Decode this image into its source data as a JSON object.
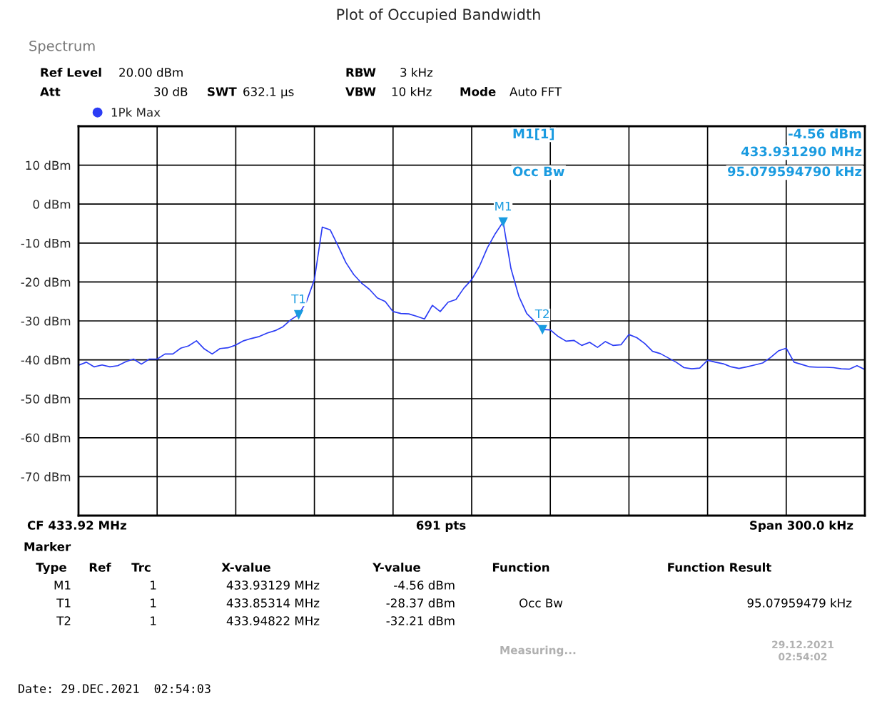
{
  "chart_data": {
    "type": "line",
    "title": "Plot of Occupied Bandwidth",
    "categories": [
      null,
      null,
      null,
      null,
      null,
      null,
      null,
      null,
      null,
      null,
      null,
      null,
      null,
      null,
      null,
      null,
      null,
      null,
      null,
      null,
      null,
      null,
      null,
      null,
      null,
      null,
      null,
      null,
      null,
      null,
      null,
      null,
      null,
      null,
      null,
      null,
      null,
      null,
      null,
      null,
      null,
      null,
      null,
      null,
      null,
      null,
      null,
      null,
      null,
      null,
      null,
      null,
      null,
      null,
      null,
      null,
      null,
      null,
      null,
      null,
      null,
      null,
      null,
      null,
      null,
      null,
      null,
      null,
      null,
      null,
      null,
      null,
      null,
      null,
      null,
      null,
      null,
      null,
      null,
      null,
      null,
      null,
      null,
      null,
      null,
      null,
      null,
      null,
      null,
      null,
      null,
      null,
      null,
      null,
      null,
      null,
      null,
      null,
      null,
      null,
      null
    ],
    "ylim": [
      -80,
      20
    ],
    "yticks": [
      {
        "value": -70,
        "label": "-70 dBm"
      },
      {
        "value": -60,
        "label": "-60 dBm"
      },
      {
        "value": -50,
        "label": "-50 dBm"
      },
      {
        "value": -40,
        "label": "-40 dBm"
      },
      {
        "value": -30,
        "label": "-30 dBm"
      },
      {
        "value": -20,
        "label": "-20 dBm"
      },
      {
        "value": -10,
        "label": "-10 dBm"
      },
      {
        "value": 0,
        "label": "0 dBm"
      },
      {
        "value": 10,
        "label": "10 dBm"
      }
    ],
    "tick_labels": "y",
    "grid": true,
    "legend": "top left",
    "series": [
      {
        "name": "1Pk Max",
        "color": "#2b3cf5",
        "marker": "none",
        "values": [
          -41.4,
          -40.6,
          -41.8,
          -41.3,
          -41.8,
          -41.5,
          -40.5,
          -39.8,
          -41.1,
          -39.8,
          -39.8,
          -38.5,
          -38.5,
          -37.0,
          -36.4,
          -35.1,
          -37.2,
          -38.5,
          -37.1,
          -36.9,
          -36.2,
          -35.1,
          -34.5,
          -34.0,
          -33.1,
          -32.5,
          -31.5,
          -29.7,
          -28.37,
          -25.0,
          -19.4,
          -5.9,
          -6.6,
          -10.7,
          -15.0,
          -18.1,
          -20.3,
          -21.9,
          -24.1,
          -25.0,
          -27.6,
          -28.1,
          -28.2,
          -28.8,
          -29.5,
          -26.0,
          -27.6,
          -25.2,
          -24.5,
          -21.6,
          -19.4,
          -15.9,
          -11.2,
          -7.6,
          -4.56,
          -16.6,
          -23.7,
          -28.1,
          -30.1,
          -32.21,
          -32.3,
          -34.0,
          -35.2,
          -35.0,
          -36.3,
          -35.5,
          -36.8,
          -35.3,
          -36.3,
          -36.1,
          -33.5,
          -34.3,
          -35.8,
          -37.8,
          -38.4,
          -39.5,
          -40.6,
          -42.0,
          -42.3,
          -42.1,
          -40.1,
          -40.6,
          -41.0,
          -41.8,
          -42.2,
          -41.8,
          -41.3,
          -40.8,
          -39.4,
          -37.7,
          -37.0,
          -40.6,
          -41.2,
          -41.8,
          -41.9,
          -41.9,
          -42.0,
          -42.3,
          -42.4,
          -41.5,
          -42.5
        ]
      }
    ],
    "annotations": [
      {
        "text": "M1",
        "y": -4.56
      },
      {
        "text": "T1",
        "y": -28.37
      },
      {
        "text": "T2",
        "y": -32.21
      },
      "Spectrum",
      "Ref Level",
      "20.00 dBm",
      "Att",
      "30 dB",
      "SWT",
      "632.1 µs",
      "RBW",
      "3 kHz",
      "VBW",
      "10 kHz",
      "Mode",
      "Auto FFT",
      "M1[1]",
      "-4.56 dBm",
      "433.931290 MHz",
      "Occ Bw",
      "95.079594790 kHz",
      "CF 433.92 MHz",
      "691 pts",
      "Span 300.0 kHz",
      "Marker",
      "Type",
      "Ref",
      "Trc",
      "X-value",
      "Y-value",
      "Function",
      "Function Result",
      "M1",
      "1",
      "433.93129 MHz",
      "-4.56 dBm",
      "T1",
      "1",
      "433.85314 MHz",
      "-28.37 dBm",
      "Occ Bw",
      "95.07959479 kHz",
      "T2",
      "1",
      "433.94822 MHz",
      "-32.21 dBm",
      "Measuring...",
      "29.12.2021",
      "02:54:02",
      "Date: 29.DEC.2021  02:54:03"
    ]
  }
}
